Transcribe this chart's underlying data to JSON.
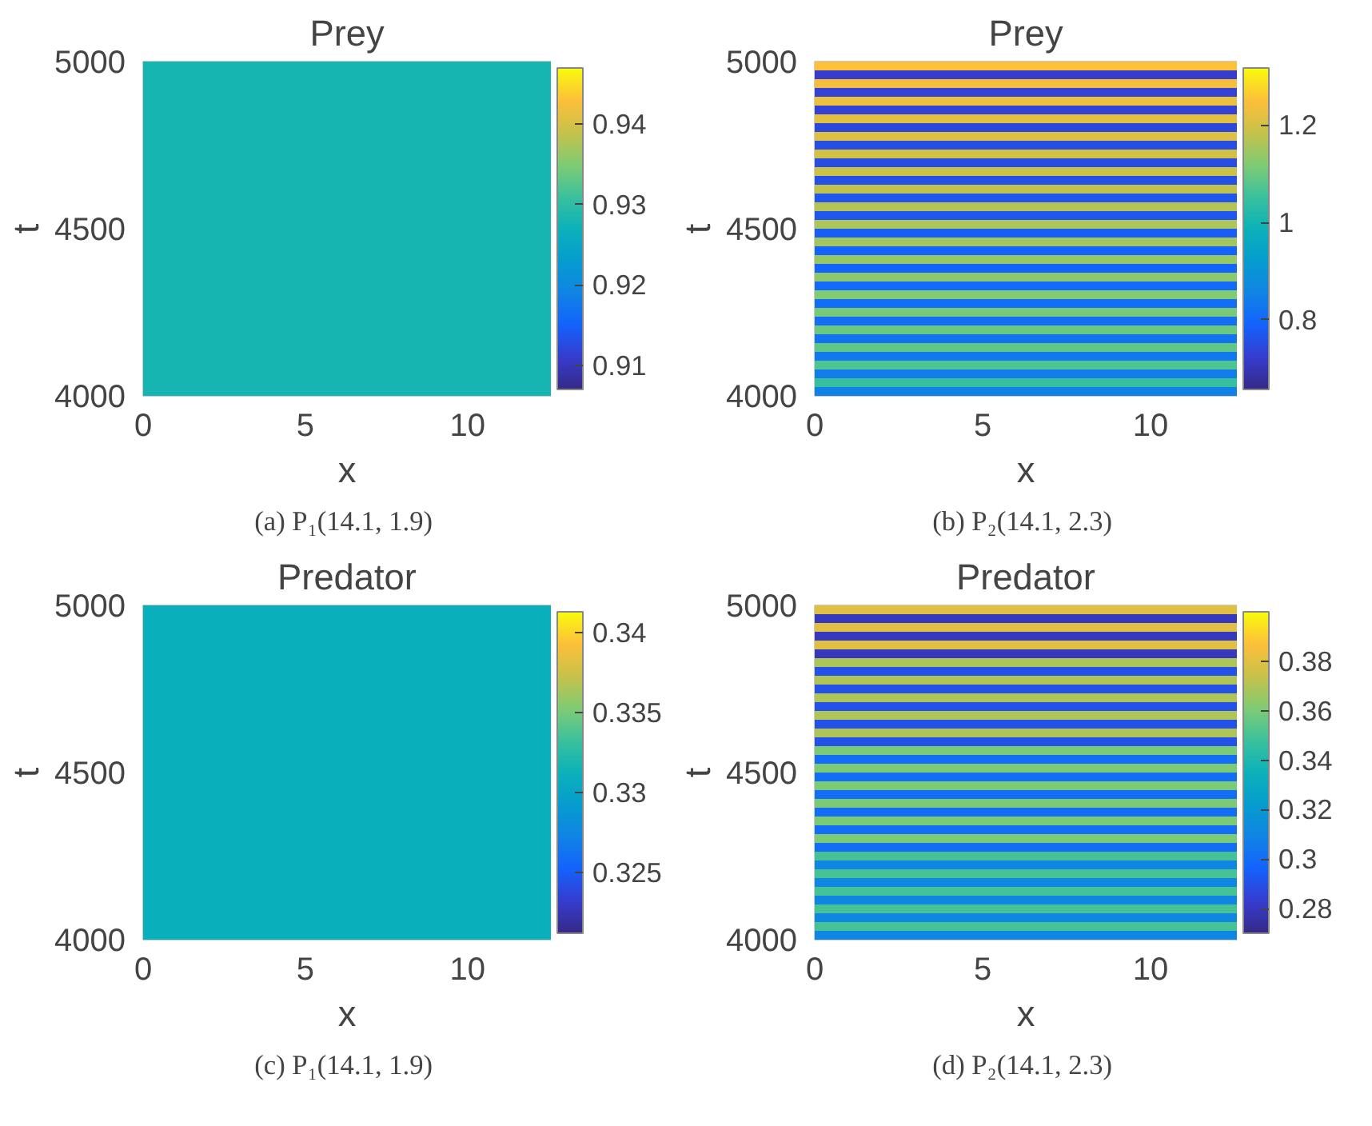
{
  "chart_data": [
    {
      "type": "heatmap",
      "title": "Prey",
      "xlabel": "x",
      "ylabel": "t",
      "cells": [
        [
          0.928
        ]
      ],
      "xlim": [
        0,
        12.57
      ],
      "ylim": [
        4000,
        5000
      ],
      "xticks": [
        0,
        5,
        10
      ],
      "yticks": [
        4000,
        4500,
        5000
      ],
      "clim": [
        0.907,
        0.947
      ],
      "cticks": [
        0.91,
        0.92,
        0.93,
        0.94
      ],
      "annotations": [
        "(a)  P₁(14.1, 1.9)"
      ]
    },
    {
      "type": "heatmap",
      "title": "Prey",
      "xlabel": "x",
      "ylabel": "t",
      "cells": [
        [
          1.25
        ],
        [
          0.72
        ],
        [
          1.24
        ],
        [
          0.73
        ],
        [
          1.23
        ],
        [
          0.73
        ],
        [
          1.22
        ],
        [
          0.74
        ],
        [
          1.21
        ],
        [
          0.75
        ],
        [
          1.2
        ],
        [
          0.75
        ],
        [
          1.19
        ],
        [
          0.76
        ],
        [
          1.18
        ],
        [
          0.77
        ],
        [
          1.17
        ],
        [
          0.77
        ],
        [
          1.16
        ],
        [
          0.78
        ],
        [
          1.15
        ],
        [
          0.79
        ],
        [
          1.14
        ],
        [
          0.79
        ],
        [
          1.13
        ],
        [
          0.8
        ],
        [
          1.12
        ],
        [
          0.81
        ],
        [
          1.11
        ],
        [
          0.81
        ],
        [
          1.1
        ],
        [
          0.82
        ],
        [
          1.09
        ],
        [
          0.83
        ],
        [
          1.07
        ],
        [
          0.84
        ],
        [
          1.05
        ],
        [
          0.85
        ]
      ],
      "xlim": [
        0,
        12.57
      ],
      "ylim": [
        4000,
        5000
      ],
      "xticks": [
        0,
        5,
        10
      ],
      "yticks": [
        4000,
        4500,
        5000
      ],
      "clim": [
        0.657,
        1.317
      ],
      "cticks": [
        0.8,
        1,
        1.2
      ],
      "annotations": [
        "(b)  P₂(14.1, 2.3)"
      ]
    },
    {
      "type": "heatmap",
      "title": "Predator",
      "xlabel": "x",
      "ylabel": "t",
      "cells": [
        [
          0.331
        ]
      ],
      "xlim": [
        0,
        12.57
      ],
      "ylim": [
        4000,
        5000
      ],
      "xticks": [
        0,
        5,
        10
      ],
      "yticks": [
        4000,
        4500,
        5000
      ],
      "clim": [
        0.3212,
        0.3413
      ],
      "cticks": [
        0.325,
        0.33,
        0.335,
        0.34
      ],
      "annotations": [
        "(c)  P₁(14.1, 1.9)"
      ]
    },
    {
      "type": "heatmap",
      "title": "Predator",
      "xlabel": "x",
      "ylabel": "t",
      "cells": [
        [
          0.38
        ],
        [
          0.28
        ],
        [
          0.38
        ],
        [
          0.28
        ],
        [
          0.38
        ],
        [
          0.28
        ],
        [
          0.37
        ],
        [
          0.29
        ],
        [
          0.37
        ],
        [
          0.29
        ],
        [
          0.37
        ],
        [
          0.29
        ],
        [
          0.37
        ],
        [
          0.29
        ],
        [
          0.37
        ],
        [
          0.29
        ],
        [
          0.36
        ],
        [
          0.3
        ],
        [
          0.36
        ],
        [
          0.3
        ],
        [
          0.36
        ],
        [
          0.3
        ],
        [
          0.36
        ],
        [
          0.3
        ],
        [
          0.36
        ],
        [
          0.3
        ],
        [
          0.36
        ],
        [
          0.3
        ],
        [
          0.35
        ],
        [
          0.31
        ],
        [
          0.35
        ],
        [
          0.31
        ],
        [
          0.35
        ],
        [
          0.31
        ],
        [
          0.35
        ],
        [
          0.31
        ],
        [
          0.35
        ],
        [
          0.31
        ]
      ],
      "xlim": [
        0,
        12.57
      ],
      "ylim": [
        4000,
        5000
      ],
      "xticks": [
        0,
        5,
        10
      ],
      "yticks": [
        4000,
        4500,
        5000
      ],
      "clim": [
        0.27,
        0.4
      ],
      "cticks": [
        0.28,
        0.3,
        0.32,
        0.34,
        0.36,
        0.38
      ],
      "annotations": [
        "(d)  P₂(14.1, 2.3)"
      ]
    }
  ]
}
